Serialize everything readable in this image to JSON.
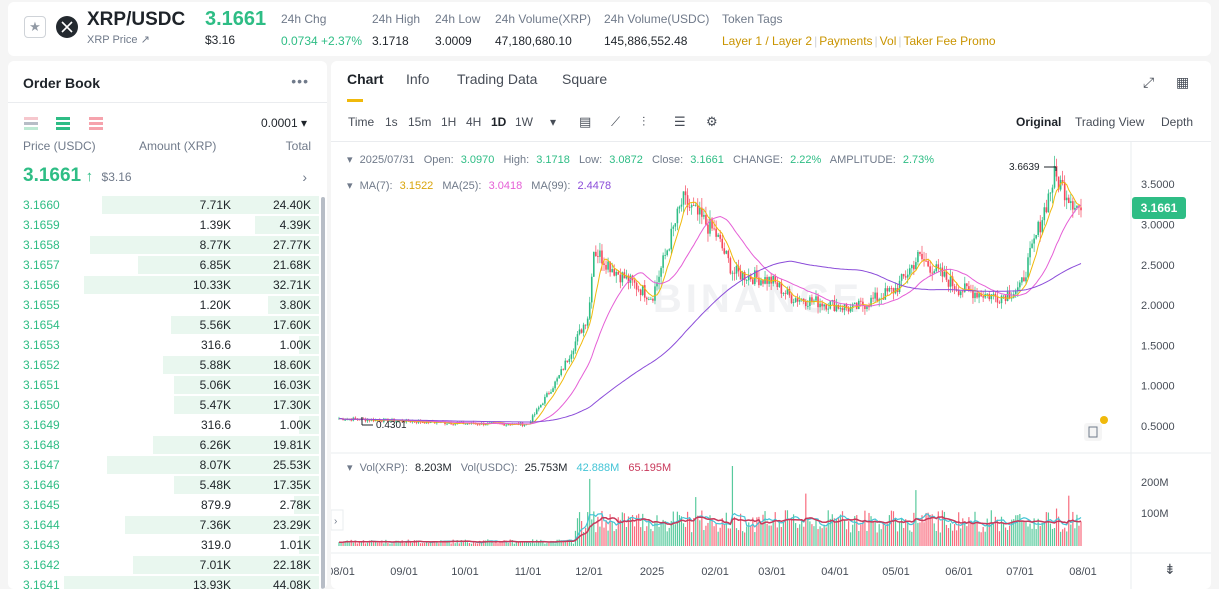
{
  "header": {
    "pair": "XRP/USDC",
    "subname": "XRP Price ↗",
    "last_price": "3.1661",
    "last_price_usd": "$3.16",
    "change_label": "24h Chg",
    "change_value": "0.0734 +2.37%",
    "high_label": "24h High",
    "high_value": "3.1718",
    "low_label": "24h Low",
    "low_value": "3.0009",
    "vol_xrp_label": "24h Volume(XRP)",
    "vol_xrp_value": "47,180,680.10",
    "vol_usdc_label": "24h Volume(USDC)",
    "vol_usdc_value": "145,886,552.48",
    "tags_label": "Token Tags",
    "tags": [
      "Layer 1 / Layer 2",
      "Payments",
      "Vol",
      "Taker Fee Promo"
    ]
  },
  "orderbook": {
    "title": "Order Book",
    "more": "•••",
    "tick_size": "0.0001 ▾",
    "col_price": "Price (USDC)",
    "col_amount": "Amount (XRP)",
    "col_total": "Total",
    "mid_price": "3.1661",
    "mid_arrow": "↑",
    "mid_usd": "$3.16",
    "rows": [
      {
        "price": "3.1660",
        "amount": "7.71K",
        "total": "24.40K",
        "depth": 0.85
      },
      {
        "price": "3.1659",
        "amount": "1.39K",
        "total": "4.39K",
        "depth": 0.25
      },
      {
        "price": "3.1658",
        "amount": "8.77K",
        "total": "27.77K",
        "depth": 0.9
      },
      {
        "price": "3.1657",
        "amount": "6.85K",
        "total": "21.68K",
        "depth": 0.71
      },
      {
        "price": "3.1656",
        "amount": "10.33K",
        "total": "32.71K",
        "depth": 0.92
      },
      {
        "price": "3.1655",
        "amount": "1.20K",
        "total": "3.80K",
        "depth": 0.2
      },
      {
        "price": "3.1654",
        "amount": "5.56K",
        "total": "17.60K",
        "depth": 0.58
      },
      {
        "price": "3.1653",
        "amount": "316.6",
        "total": "1.00K",
        "depth": 0.08
      },
      {
        "price": "3.1652",
        "amount": "5.88K",
        "total": "18.60K",
        "depth": 0.61
      },
      {
        "price": "3.1651",
        "amount": "5.06K",
        "total": "16.03K",
        "depth": 0.57
      },
      {
        "price": "3.1650",
        "amount": "5.47K",
        "total": "17.30K",
        "depth": 0.57
      },
      {
        "price": "3.1649",
        "amount": "316.6",
        "total": "1.00K",
        "depth": 0.08
      },
      {
        "price": "3.1648",
        "amount": "6.26K",
        "total": "19.81K",
        "depth": 0.65
      },
      {
        "price": "3.1647",
        "amount": "8.07K",
        "total": "25.53K",
        "depth": 0.83
      },
      {
        "price": "3.1646",
        "amount": "5.48K",
        "total": "17.35K",
        "depth": 0.57
      },
      {
        "price": "3.1645",
        "amount": "879.9",
        "total": "2.78K",
        "depth": 0.1
      },
      {
        "price": "3.1644",
        "amount": "7.36K",
        "total": "23.29K",
        "depth": 0.76
      },
      {
        "price": "3.1643",
        "amount": "319.0",
        "total": "1.01K",
        "depth": 0.08
      },
      {
        "price": "3.1642",
        "amount": "7.01K",
        "total": "22.18K",
        "depth": 0.73
      },
      {
        "price": "3.1641",
        "amount": "13.93K",
        "total": "44.08K",
        "depth": 1.0
      }
    ]
  },
  "chart_panel": {
    "tabs": [
      "Chart",
      "Info",
      "Trading Data",
      "Square"
    ],
    "active_tab": "Chart",
    "time_label": "Time",
    "timeframes": [
      "1s",
      "15m",
      "1H",
      "4H",
      "1D",
      "1W"
    ],
    "active_timeframe": "1D",
    "tf_more": "▾",
    "views": [
      "Original",
      "Trading View",
      "Depth"
    ],
    "active_view": "Original",
    "ohlc": {
      "date": "2025/07/31",
      "open_label": "Open:",
      "open": "3.0970",
      "high_label": "High:",
      "high": "3.1718",
      "low_label": "Low:",
      "low": "3.0872",
      "close_label": "Close:",
      "close": "3.1661",
      "change_label": "CHANGE:",
      "change": "2.22%",
      "amplitude_label": "AMPLITUDE:",
      "amplitude": "2.73%"
    },
    "ma": {
      "ma7_label": "MA(7):",
      "ma7": "3.1522",
      "ma25_label": "MA(25):",
      "ma25": "3.0418",
      "ma99_label": "MA(99):",
      "ma99": "2.4478"
    },
    "vol": {
      "label": "Vol(XRP):",
      "value": "8.203M",
      "usdc_label": "Vol(USDC):",
      "usdc_value": "25.753M",
      "ma1": "42.888M",
      "ma2": "65.195M"
    },
    "current_price_tag": "3.1661",
    "max_marker": "3.6639",
    "min_marker": "0.4301",
    "watermark": "BINANCE",
    "colors": {
      "up": "#2ebd85",
      "down": "#f6465d",
      "ma7": "#f0b90b",
      "ma25": "#e55fd6",
      "ma99": "#8b4cd9",
      "volma1": "#43c4d6",
      "volma2": "#c8385a"
    }
  },
  "chart_data": {
    "type": "candlestick",
    "y_ticks": [
      "3.5000",
      "3.0000",
      "2.5000",
      "2.0000",
      "1.5000",
      "1.0000",
      "0.5000"
    ],
    "ylim": [
      0.3,
      3.9
    ],
    "vol_ticks": [
      "200M",
      "100M"
    ],
    "x_ticks": [
      "08/01",
      "09/01",
      "10/01",
      "11/01",
      "12/01",
      "2025",
      "02/01",
      "03/01",
      "04/01",
      "05/01",
      "06/01",
      "07/01",
      "08/01"
    ],
    "close_anchors": [
      {
        "x": "2024-08-01",
        "close": 0.59
      },
      {
        "x": "2024-09-01",
        "close": 0.56
      },
      {
        "x": "2024-10-01",
        "close": 0.53
      },
      {
        "x": "2024-11-01",
        "close": 0.52
      },
      {
        "x": "2024-11-16",
        "close": 1.1
      },
      {
        "x": "2024-12-01",
        "close": 1.9
      },
      {
        "x": "2024-12-03",
        "close": 2.7
      },
      {
        "x": "2024-12-15",
        "close": 2.4
      },
      {
        "x": "2025-01-01",
        "close": 2.1
      },
      {
        "x": "2025-01-16",
        "close": 3.3
      },
      {
        "x": "2025-02-01",
        "close": 2.9
      },
      {
        "x": "2025-02-10",
        "close": 2.4
      },
      {
        "x": "2025-03-01",
        "close": 2.3
      },
      {
        "x": "2025-03-10",
        "close": 2.1
      },
      {
        "x": "2025-04-01",
        "close": 2.0
      },
      {
        "x": "2025-04-10",
        "close": 1.95
      },
      {
        "x": "2025-05-01",
        "close": 2.2
      },
      {
        "x": "2025-05-12",
        "close": 2.6
      },
      {
        "x": "2025-06-01",
        "close": 2.2
      },
      {
        "x": "2025-06-20",
        "close": 2.1
      },
      {
        "x": "2025-07-01",
        "close": 2.2
      },
      {
        "x": "2025-07-18",
        "close": 3.6
      },
      {
        "x": "2025-07-31",
        "close": 3.17
      }
    ]
  }
}
